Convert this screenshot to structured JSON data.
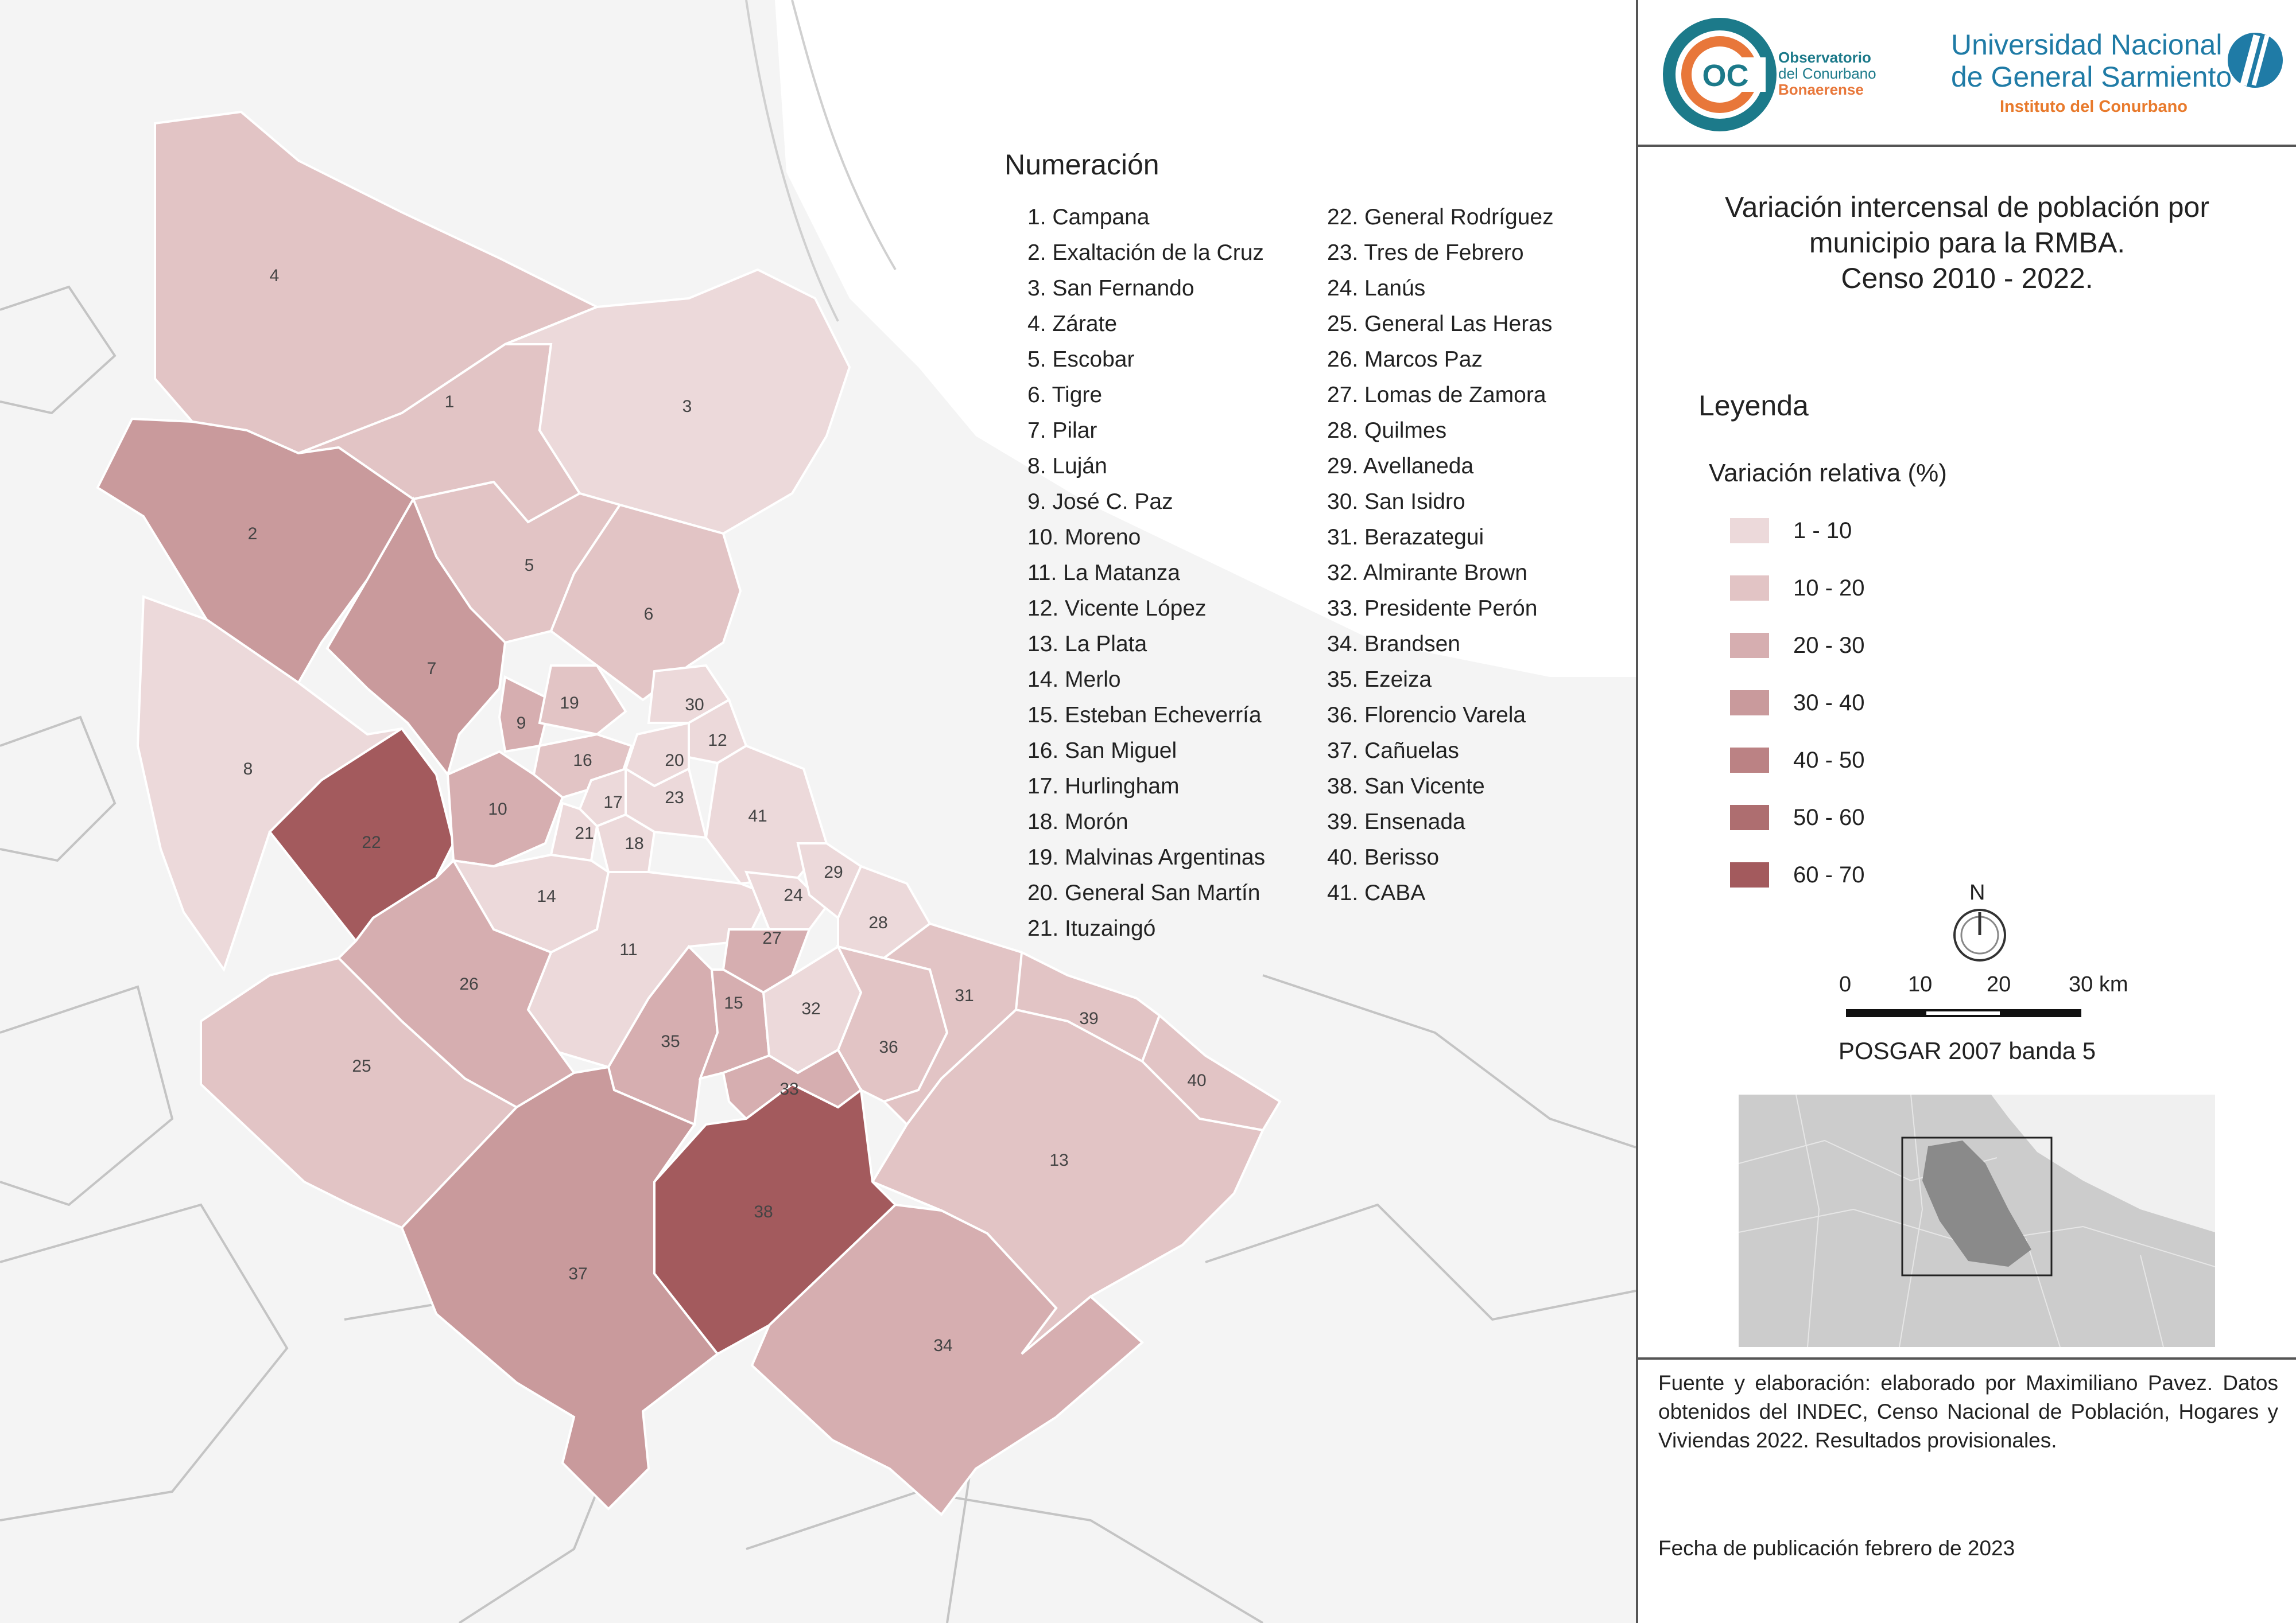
{
  "header": {
    "observatorio_lines": [
      "Observatorio",
      "del Conurbano",
      "Bonaerense"
    ],
    "coc_logo_text": "OC",
    "university_lines": [
      "Universidad Nacional",
      "de General Sarmiento"
    ],
    "university_sub": "Instituto del Conurbano"
  },
  "title_lines": [
    "Variación intercensal de población por",
    "municipio para la RMBA.",
    "Censo 2010 - 2022."
  ],
  "legend": {
    "heading": "Leyenda",
    "subtitle": "Variación relativa (%)",
    "classes": [
      {
        "label": "1 - 10",
        "color": "#ecd9da"
      },
      {
        "label": "10 - 20",
        "color": "#e2c4c5"
      },
      {
        "label": "20 - 30",
        "color": "#d6aeb0"
      },
      {
        "label": "30 - 40",
        "color": "#c99a9c"
      },
      {
        "label": "40 - 50",
        "color": "#bb8284"
      },
      {
        "label": "50 - 60",
        "color": "#ae6e70"
      },
      {
        "label": "60 - 70",
        "color": "#a35a5d"
      }
    ]
  },
  "north_label": "N",
  "scale_bar": {
    "labels": [
      "0",
      "10",
      "20",
      "30 km"
    ]
  },
  "projection": "POSGAR 2007 banda 5",
  "numeracion": {
    "heading": "Numeración",
    "items": [
      "1. Campana",
      "2. Exaltación de la Cruz",
      "3. San Fernando",
      "4. Zárate",
      "5. Escobar",
      "6. Tigre",
      "7. Pilar",
      "8. Luján",
      "9. José C. Paz",
      "10. Moreno",
      "11. La Matanza",
      "12. Vicente López",
      "13. La Plata",
      "14. Merlo",
      "15. Esteban Echeverría",
      "16. San Miguel",
      "17. Hurlingham",
      "18. Morón",
      "19. Malvinas Argentinas",
      "20. General San Martín",
      "21. Ituzaingó",
      "22. General Rodríguez",
      "23. Tres de Febrero",
      "24. Lanús",
      "25. General Las Heras",
      "26. Marcos Paz",
      "27. Lomas de Zamora",
      "28. Quilmes",
      "29. Avellaneda",
      "30. San Isidro",
      "31. Berazategui",
      "32. Almirante Brown",
      "33. Presidente Perón",
      "34. Brandsen",
      "35. Ezeiza",
      "36. Florencio Varela",
      "37. Cañuelas",
      "38. San Vicente",
      "39. Ensenada",
      "40. Berisso",
      "41. CABA"
    ]
  },
  "municipios": [
    {
      "id": "1",
      "class": 1
    },
    {
      "id": "2",
      "class": 3
    },
    {
      "id": "3",
      "class": 0
    },
    {
      "id": "4",
      "class": 1
    },
    {
      "id": "5",
      "class": 1
    },
    {
      "id": "6",
      "class": 1
    },
    {
      "id": "7",
      "class": 3
    },
    {
      "id": "8",
      "class": 0
    },
    {
      "id": "9",
      "class": 2
    },
    {
      "id": "10",
      "class": 2
    },
    {
      "id": "11",
      "class": 0
    },
    {
      "id": "12",
      "class": 0
    },
    {
      "id": "13",
      "class": 1
    },
    {
      "id": "14",
      "class": 0
    },
    {
      "id": "15",
      "class": 2
    },
    {
      "id": "16",
      "class": 1
    },
    {
      "id": "17",
      "class": 0
    },
    {
      "id": "18",
      "class": 0
    },
    {
      "id": "19",
      "class": 1
    },
    {
      "id": "20",
      "class": 0
    },
    {
      "id": "21",
      "class": 0
    },
    {
      "id": "22",
      "class": 6
    },
    {
      "id": "23",
      "class": 0
    },
    {
      "id": "24",
      "class": 0
    },
    {
      "id": "25",
      "class": 1
    },
    {
      "id": "26",
      "class": 2
    },
    {
      "id": "27",
      "class": 2
    },
    {
      "id": "28",
      "class": 0
    },
    {
      "id": "29",
      "class": 0
    },
    {
      "id": "30",
      "class": 0
    },
    {
      "id": "31",
      "class": 1
    },
    {
      "id": "32",
      "class": 0
    },
    {
      "id": "33",
      "class": 2
    },
    {
      "id": "34",
      "class": 2
    },
    {
      "id": "35",
      "class": 2
    },
    {
      "id": "36",
      "class": 1
    },
    {
      "id": "37",
      "class": 3
    },
    {
      "id": "38",
      "class": 6
    },
    {
      "id": "39",
      "class": 1
    },
    {
      "id": "40",
      "class": 1
    },
    {
      "id": "41",
      "class": 0
    }
  ],
  "source_text": "Fuente y elaboración: elaborado por Maximiliano Pavez. Datos obtenidos del INDEC, Censo Nacional de Población, Hogares y Viviendas 2022. Resultados provisionales.",
  "publication_date": "Fecha de publicación febrero de 2023"
}
